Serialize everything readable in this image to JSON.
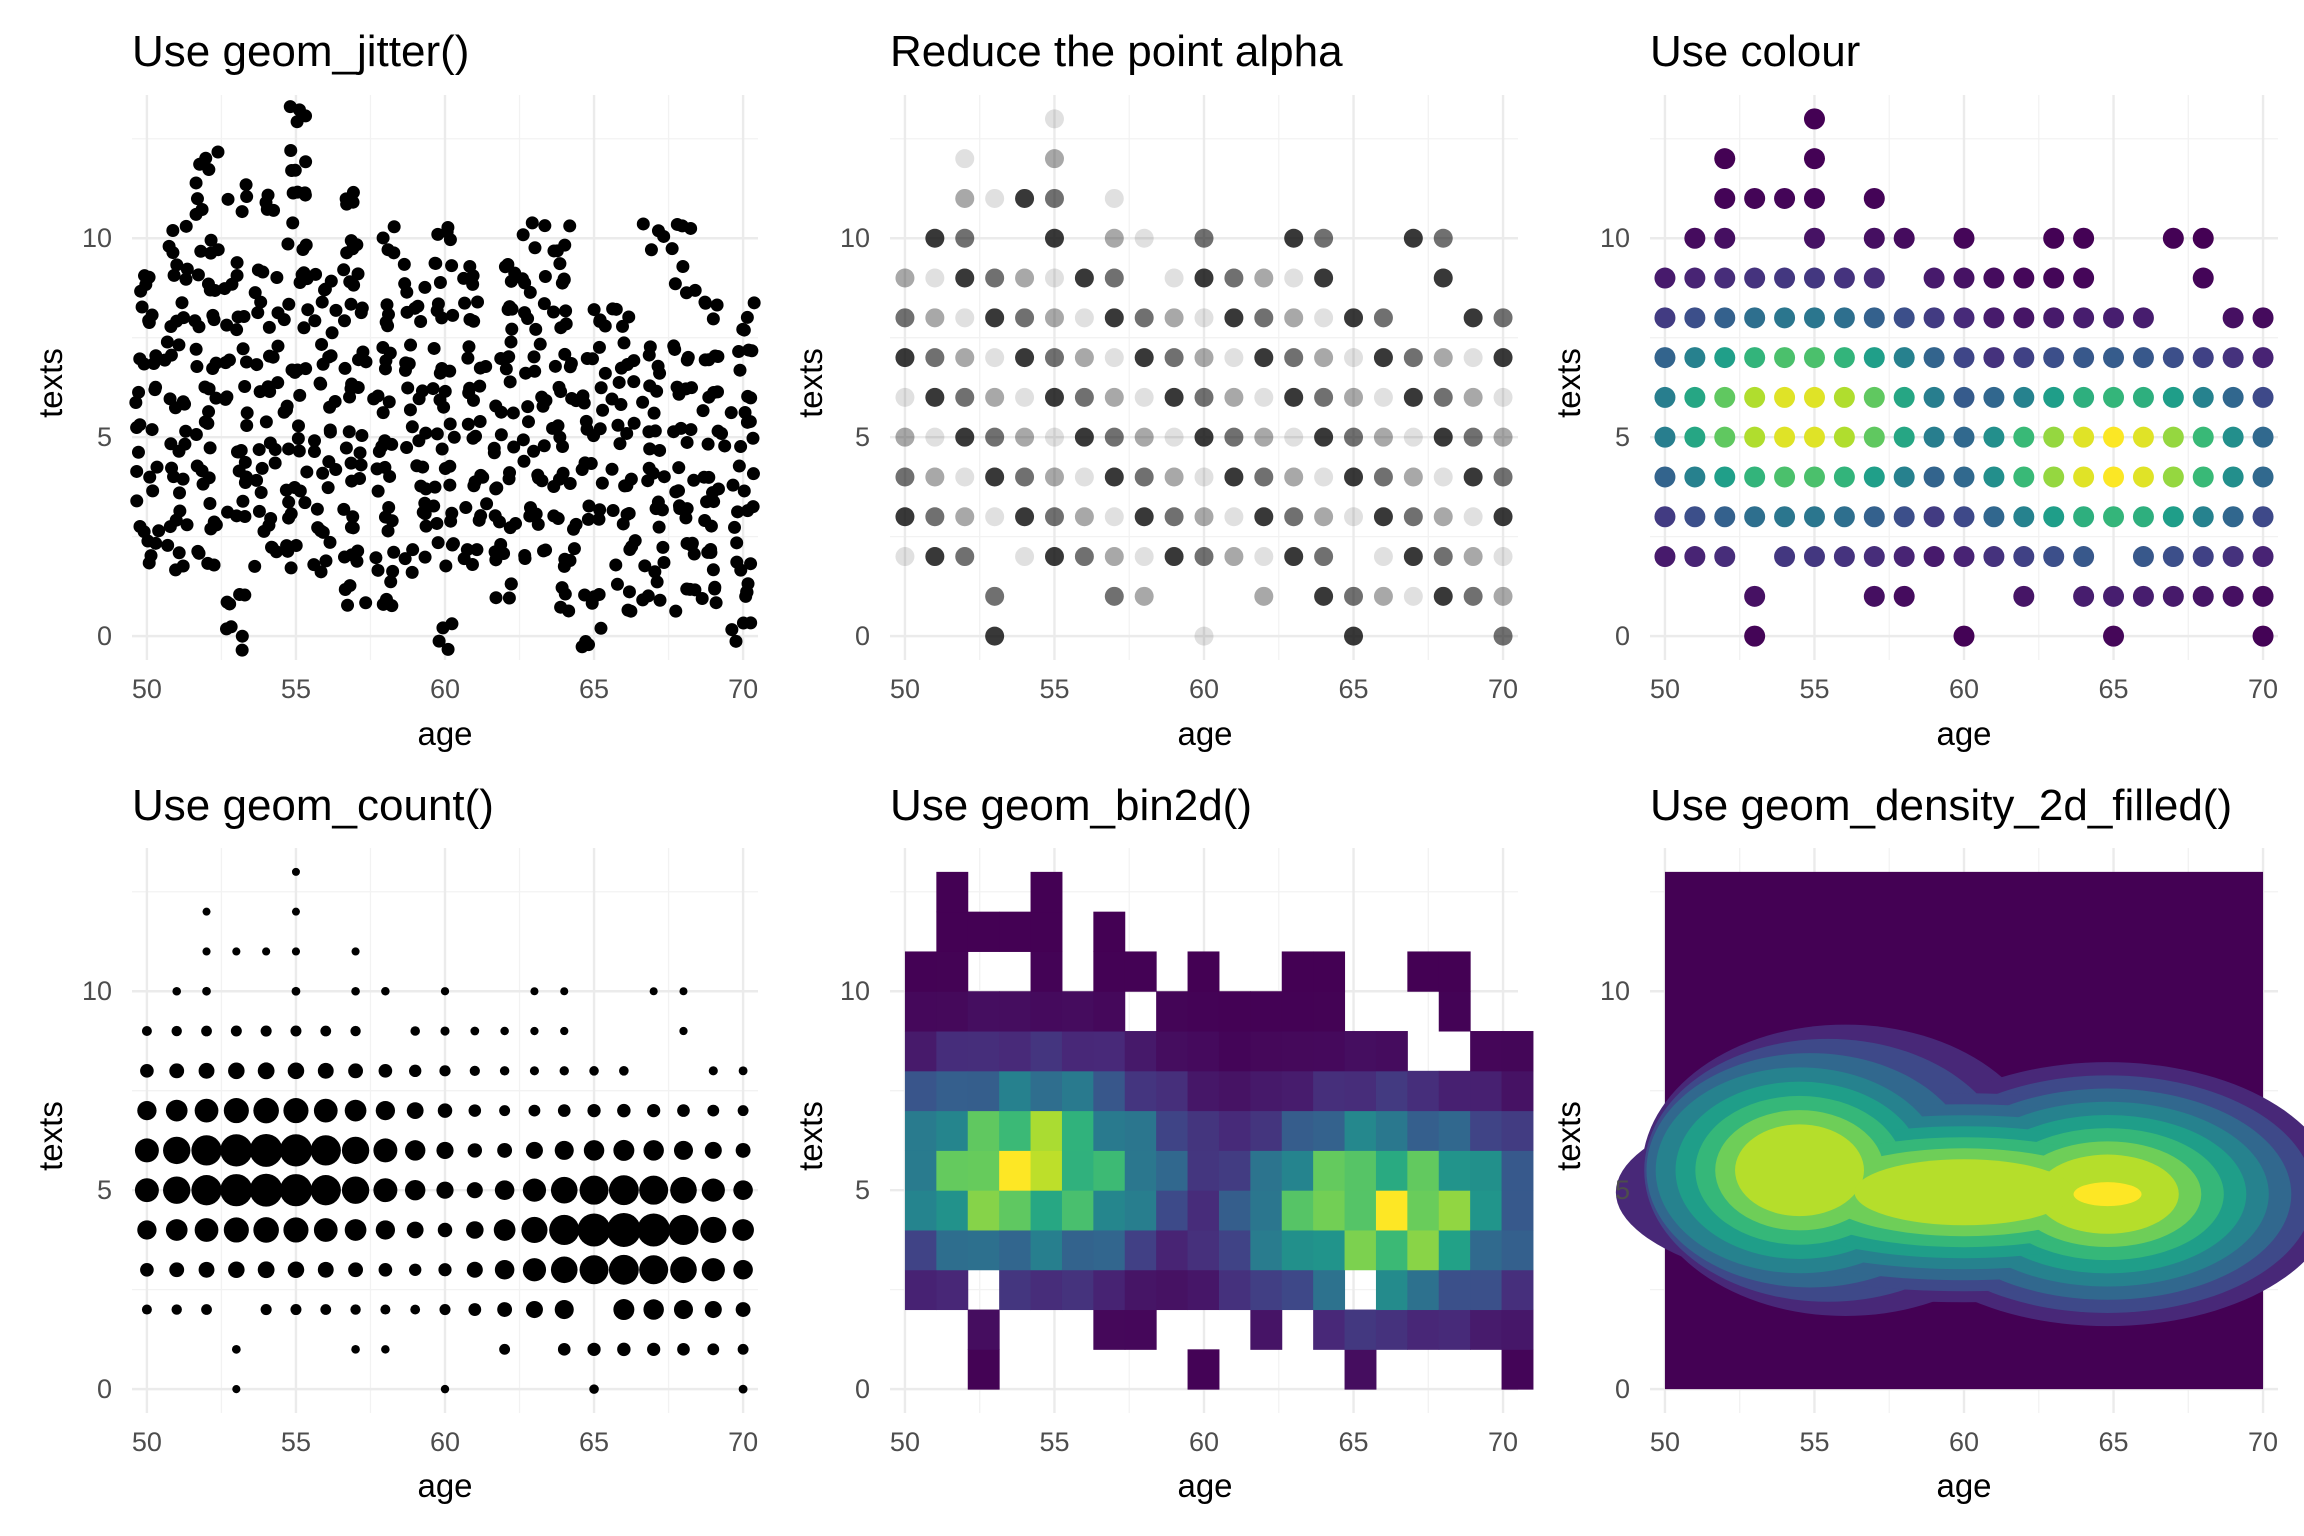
{
  "chart_data": [
    {
      "id": "jitter",
      "type": "scatter",
      "title": "Use geom_jitter()",
      "xlabel": "age",
      "ylabel": "texts",
      "xlim": [
        49.5,
        70.5
      ],
      "ylim": [
        -0.6,
        13.6
      ],
      "xticks": [
        50,
        55,
        60,
        65,
        70
      ],
      "yticks": [
        0,
        5,
        10
      ],
      "grid": true,
      "marker": {
        "style": "solid",
        "color": "#000000",
        "jitter": 0.4,
        "jitter_y": 0.4
      },
      "points": {
        "age": [
          50,
          51,
          52,
          53,
          54,
          55,
          56,
          57,
          58,
          59,
          60,
          61,
          62,
          63,
          64,
          65,
          66,
          67,
          68,
          69,
          70
        ],
        "texts_by_age": [
          [
            2,
            3,
            4,
            5,
            6,
            7,
            8,
            9
          ],
          [
            2,
            3,
            4,
            5,
            6,
            7,
            8,
            9,
            10
          ],
          [
            2,
            3,
            4,
            5,
            6,
            7,
            8,
            9,
            10,
            11,
            12
          ],
          [
            0,
            1,
            3,
            4,
            5,
            6,
            7,
            8,
            9,
            11
          ],
          [
            2,
            3,
            4,
            5,
            6,
            7,
            8,
            9,
            11
          ],
          [
            2,
            3,
            4,
            5,
            6,
            7,
            8,
            9,
            10,
            11,
            12,
            13
          ],
          [
            2,
            3,
            4,
            5,
            6,
            7,
            8,
            9
          ],
          [
            1,
            2,
            3,
            4,
            5,
            6,
            7,
            8,
            9,
            10,
            11
          ],
          [
            1,
            2,
            3,
            4,
            5,
            6,
            7,
            8,
            10
          ],
          [
            2,
            3,
            4,
            5,
            6,
            7,
            8,
            9
          ],
          [
            0,
            2,
            3,
            4,
            5,
            6,
            7,
            8,
            9,
            10
          ],
          [
            2,
            3,
            4,
            5,
            6,
            7,
            8,
            9
          ],
          [
            1,
            2,
            3,
            4,
            5,
            6,
            7,
            8,
            9
          ],
          [
            2,
            3,
            4,
            5,
            6,
            7,
            8,
            9,
            10
          ],
          [
            1,
            2,
            3,
            4,
            5,
            6,
            7,
            8,
            9,
            10
          ],
          [
            0,
            1,
            3,
            4,
            5,
            6,
            7,
            8
          ],
          [
            1,
            2,
            3,
            4,
            5,
            6,
            7,
            8
          ],
          [
            1,
            2,
            3,
            4,
            5,
            6,
            7,
            10
          ],
          [
            1,
            2,
            3,
            4,
            5,
            6,
            7,
            9,
            10
          ],
          [
            1,
            2,
            3,
            4,
            5,
            6,
            7,
            8
          ],
          [
            0,
            1,
            2,
            3,
            4,
            5,
            6,
            7,
            8
          ]
        ]
      }
    },
    {
      "id": "alpha",
      "type": "scatter",
      "title": "Reduce the point alpha",
      "xlabel": "age",
      "ylabel": "texts",
      "xlim": [
        49.5,
        70.5
      ],
      "ylim": [
        -0.6,
        13.6
      ],
      "xticks": [
        50,
        55,
        60,
        65,
        70
      ],
      "yticks": [
        0,
        5,
        10
      ],
      "grid": true,
      "marker": {
        "style": "alpha",
        "color": "#000000",
        "alpha": 0.12
      },
      "points": {
        "age": [
          50,
          51,
          52,
          53,
          54,
          55,
          56,
          57,
          58,
          59,
          60,
          61,
          62,
          63,
          64,
          65,
          66,
          67,
          68,
          69,
          70
        ],
        "texts_by_age": [
          [
            2,
            3,
            4,
            5,
            6,
            7,
            8,
            9
          ],
          [
            2,
            3,
            4,
            5,
            6,
            7,
            8,
            9,
            10
          ],
          [
            2,
            3,
            4,
            5,
            6,
            7,
            8,
            9,
            10,
            11,
            12
          ],
          [
            0,
            1,
            3,
            4,
            5,
            6,
            7,
            8,
            9,
            11
          ],
          [
            2,
            3,
            4,
            5,
            6,
            7,
            8,
            9,
            11
          ],
          [
            2,
            3,
            4,
            5,
            6,
            7,
            8,
            9,
            10,
            11,
            12,
            13
          ],
          [
            2,
            3,
            4,
            5,
            6,
            7,
            8,
            9
          ],
          [
            1,
            2,
            3,
            4,
            5,
            6,
            7,
            8,
            9,
            10,
            11
          ],
          [
            1,
            2,
            3,
            4,
            5,
            6,
            7,
            8,
            10
          ],
          [
            2,
            3,
            4,
            5,
            6,
            7,
            8,
            9
          ],
          [
            0,
            2,
            3,
            4,
            5,
            6,
            7,
            8,
            9,
            10
          ],
          [
            2,
            3,
            4,
            5,
            6,
            7,
            8,
            9
          ],
          [
            1,
            2,
            3,
            4,
            5,
            6,
            7,
            8,
            9
          ],
          [
            2,
            3,
            4,
            5,
            6,
            7,
            8,
            9,
            10
          ],
          [
            1,
            2,
            3,
            4,
            5,
            6,
            7,
            8,
            9,
            10
          ],
          [
            0,
            1,
            3,
            4,
            5,
            6,
            7,
            8
          ],
          [
            1,
            2,
            3,
            4,
            5,
            6,
            7,
            8
          ],
          [
            1,
            2,
            3,
            4,
            5,
            6,
            7,
            10
          ],
          [
            1,
            2,
            3,
            4,
            5,
            6,
            7,
            9,
            10
          ],
          [
            1,
            2,
            3,
            4,
            5,
            6,
            7,
            8
          ],
          [
            0,
            1,
            2,
            3,
            4,
            5,
            6,
            7,
            8
          ]
        ]
      }
    },
    {
      "id": "colour",
      "type": "scatter",
      "title": "Use colour",
      "xlabel": "age",
      "ylabel": "texts",
      "xlim": [
        49.5,
        70.5
      ],
      "ylim": [
        -0.6,
        13.6
      ],
      "xticks": [
        50,
        55,
        60,
        65,
        70
      ],
      "yticks": [
        0,
        5,
        10
      ],
      "grid": true,
      "marker": {
        "style": "colour",
        "palette": [
          "#440154",
          "#482878",
          "#3e4989",
          "#31688e",
          "#26828e",
          "#1f9e89",
          "#35b779",
          "#6ece58",
          "#b5de2b",
          "#fde725"
        ]
      },
      "points": {
        "age": [
          50,
          51,
          52,
          53,
          54,
          55,
          56,
          57,
          58,
          59,
          60,
          61,
          62,
          63,
          64,
          65,
          66,
          67,
          68,
          69,
          70
        ],
        "texts_by_age": [
          [
            2,
            3,
            4,
            5,
            6,
            7,
            8,
            9
          ],
          [
            2,
            3,
            4,
            5,
            6,
            7,
            8,
            9,
            10
          ],
          [
            2,
            3,
            4,
            5,
            6,
            7,
            8,
            9,
            10,
            11,
            12
          ],
          [
            0,
            1,
            3,
            4,
            5,
            6,
            7,
            8,
            9,
            11
          ],
          [
            2,
            3,
            4,
            5,
            6,
            7,
            8,
            9,
            11
          ],
          [
            2,
            3,
            4,
            5,
            6,
            7,
            8,
            9,
            10,
            11,
            12,
            13
          ],
          [
            2,
            3,
            4,
            5,
            6,
            7,
            8,
            9
          ],
          [
            1,
            2,
            3,
            4,
            5,
            6,
            7,
            8,
            9,
            10,
            11
          ],
          [
            1,
            2,
            3,
            4,
            5,
            6,
            7,
            8,
            10
          ],
          [
            2,
            3,
            4,
            5,
            6,
            7,
            8,
            9
          ],
          [
            0,
            2,
            3,
            4,
            5,
            6,
            7,
            8,
            9,
            10
          ],
          [
            2,
            3,
            4,
            5,
            6,
            7,
            8,
            9
          ],
          [
            1,
            2,
            3,
            4,
            5,
            6,
            7,
            8,
            9
          ],
          [
            2,
            3,
            4,
            5,
            6,
            7,
            8,
            9,
            10
          ],
          [
            1,
            2,
            3,
            4,
            5,
            6,
            7,
            8,
            9,
            10
          ],
          [
            0,
            1,
            3,
            4,
            5,
            6,
            7,
            8
          ],
          [
            1,
            2,
            3,
            4,
            5,
            6,
            7,
            8
          ],
          [
            1,
            2,
            3,
            4,
            5,
            6,
            7,
            10
          ],
          [
            1,
            2,
            3,
            4,
            5,
            6,
            7,
            9,
            10
          ],
          [
            1,
            2,
            3,
            4,
            5,
            6,
            7,
            8
          ],
          [
            0,
            1,
            2,
            3,
            4,
            5,
            6,
            7,
            8
          ]
        ]
      }
    },
    {
      "id": "count",
      "type": "scatter",
      "title": "Use geom_count()",
      "xlabel": "age",
      "ylabel": "texts",
      "xlim": [
        49.5,
        70.5
      ],
      "ylim": [
        -0.6,
        13.6
      ],
      "xticks": [
        50,
        55,
        60,
        65,
        70
      ],
      "yticks": [
        0,
        5,
        10
      ],
      "grid": true,
      "marker": {
        "style": "count",
        "color": "#000000"
      },
      "points": {
        "age": [
          50,
          51,
          52,
          53,
          54,
          55,
          56,
          57,
          58,
          59,
          60,
          61,
          62,
          63,
          64,
          65,
          66,
          67,
          68,
          69,
          70
        ],
        "texts_by_age": [
          [
            2,
            3,
            4,
            5,
            6,
            7,
            8,
            9
          ],
          [
            2,
            3,
            4,
            5,
            6,
            7,
            8,
            9,
            10
          ],
          [
            2,
            3,
            4,
            5,
            6,
            7,
            8,
            9,
            10,
            11,
            12
          ],
          [
            0,
            1,
            3,
            4,
            5,
            6,
            7,
            8,
            9,
            11
          ],
          [
            2,
            3,
            4,
            5,
            6,
            7,
            8,
            9,
            11
          ],
          [
            2,
            3,
            4,
            5,
            6,
            7,
            8,
            9,
            10,
            11,
            12,
            13
          ],
          [
            2,
            3,
            4,
            5,
            6,
            7,
            8,
            9
          ],
          [
            1,
            2,
            3,
            4,
            5,
            6,
            7,
            8,
            9,
            10,
            11
          ],
          [
            1,
            2,
            3,
            4,
            5,
            6,
            7,
            8,
            10
          ],
          [
            2,
            3,
            4,
            5,
            6,
            7,
            8,
            9
          ],
          [
            0,
            2,
            3,
            4,
            5,
            6,
            7,
            8,
            9,
            10
          ],
          [
            2,
            3,
            4,
            5,
            6,
            7,
            8,
            9
          ],
          [
            1,
            2,
            3,
            4,
            5,
            6,
            7,
            8,
            9
          ],
          [
            2,
            3,
            4,
            5,
            6,
            7,
            8,
            9,
            10
          ],
          [
            1,
            2,
            3,
            4,
            5,
            6,
            7,
            8,
            9,
            10
          ],
          [
            0,
            1,
            3,
            4,
            5,
            6,
            7,
            8
          ],
          [
            1,
            2,
            3,
            4,
            5,
            6,
            7,
            8
          ],
          [
            1,
            2,
            3,
            4,
            5,
            6,
            7,
            10
          ],
          [
            1,
            2,
            3,
            4,
            5,
            6,
            7,
            9,
            10
          ],
          [
            1,
            2,
            3,
            4,
            5,
            6,
            7,
            8
          ],
          [
            0,
            1,
            2,
            3,
            4,
            5,
            6,
            7,
            8
          ]
        ]
      }
    },
    {
      "id": "bin2d",
      "type": "heatmap",
      "title": "Use geom_bin2d()",
      "xlabel": "age",
      "ylabel": "texts",
      "xlim": [
        49.5,
        70.5
      ],
      "ylim": [
        -0.6,
        13.6
      ],
      "xticks": [
        50,
        55,
        60,
        65,
        70
      ],
      "yticks": [
        0,
        5,
        10
      ],
      "grid": true,
      "palette": [
        "#440154",
        "#482878",
        "#3e4989",
        "#31688e",
        "#26828e",
        "#1f9e89",
        "#35b779",
        "#6ece58",
        "#b5de2b",
        "#fde725"
      ],
      "bins": {
        "x_edges": [
          50,
          71
        ],
        "n_x": 20,
        "y_edges": [
          0,
          13
        ],
        "n_y": 13
      }
    },
    {
      "id": "density",
      "type": "heatmap",
      "title": "Use geom_density_2d_filled()",
      "xlabel": "age",
      "ylabel": "texts",
      "xlim": [
        49.5,
        70.5
      ],
      "ylim": [
        -0.6,
        13.6
      ],
      "xticks": [
        50,
        55,
        60,
        65,
        70
      ],
      "yticks": [
        0,
        5,
        10
      ],
      "grid": true,
      "palette": [
        "#440154",
        "#482878",
        "#3e4989",
        "#31688e",
        "#26828e",
        "#1f9e89",
        "#35b779",
        "#6ece58",
        "#b5de2b",
        "#fde725"
      ],
      "levels": 10,
      "extent": {
        "x": [
          50,
          70
        ],
        "y": [
          0,
          13
        ]
      },
      "modes": [
        {
          "age": 54.5,
          "texts": 5.5
        },
        {
          "age": 64.8,
          "texts": 4.9
        }
      ]
    }
  ]
}
